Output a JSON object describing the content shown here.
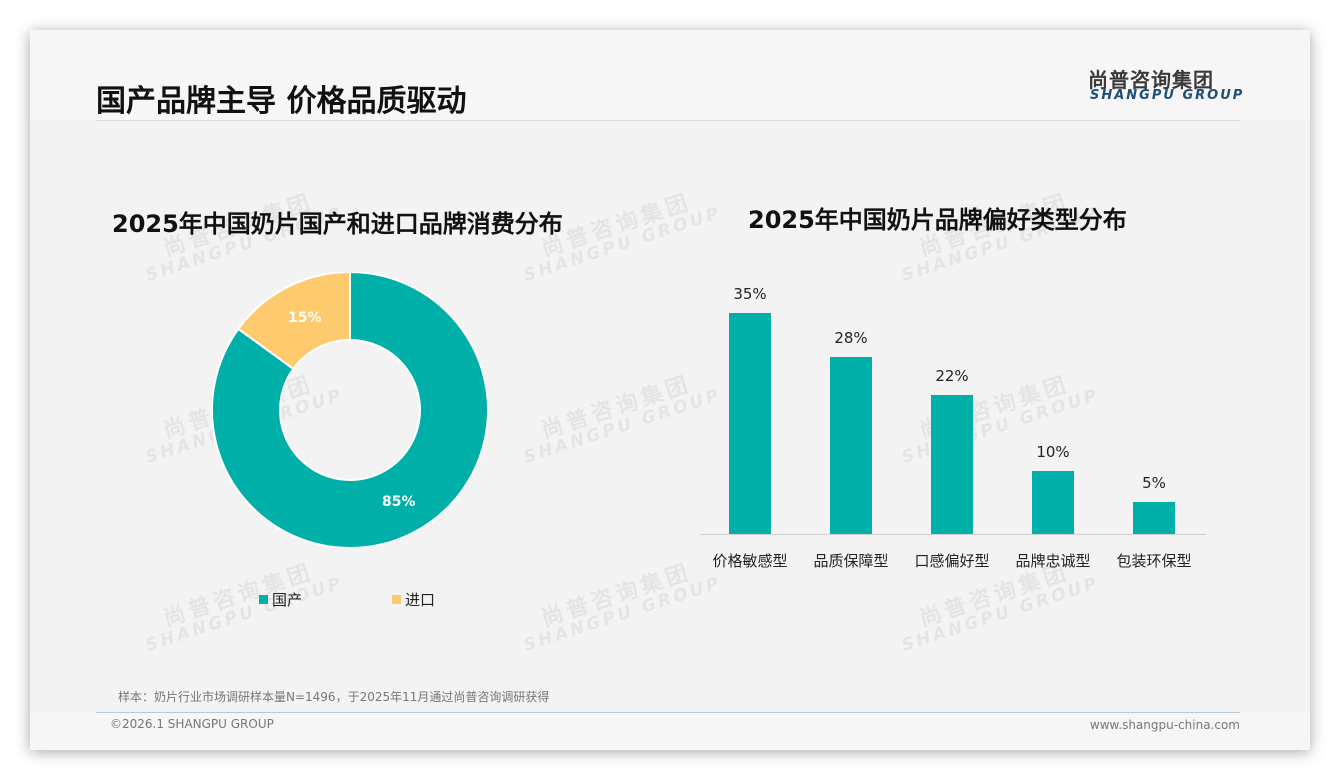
{
  "header": {
    "title": "国产品牌主导 价格品质驱动",
    "logo_cn": "尚普咨询集团",
    "logo_en": "SHANGPU GROUP"
  },
  "watermark": {
    "cn": "尚普咨询集团",
    "en": "SHANGPU GROUP"
  },
  "colors": {
    "teal": "#00afa8",
    "yellow": "#fdcb6e",
    "title": "#111111",
    "logo_en": "#1f4e79"
  },
  "chart_data": [
    {
      "type": "pie",
      "title": "2025年中国奶片国产和进口品牌消费分布",
      "categories": [
        "国产",
        "进口"
      ],
      "values": [
        85,
        15
      ],
      "labels": [
        "85%",
        "15%"
      ],
      "colors": [
        "#00afa8",
        "#fdcb6e"
      ],
      "donut": true,
      "legend_position": "bottom"
    },
    {
      "type": "bar",
      "title": "2025年中国奶片品牌偏好类型分布",
      "categories": [
        "价格敏感型",
        "品质保障型",
        "口感偏好型",
        "品牌忠诚型",
        "包装环保型"
      ],
      "values": [
        35,
        28,
        22,
        10,
        5
      ],
      "labels": [
        "35%",
        "28%",
        "22%",
        "10%",
        "5%"
      ],
      "color": "#00afa8",
      "xlabel": "",
      "ylabel": "",
      "grid": false
    }
  ],
  "footer": {
    "note": "样本：奶片行业市场调研样本量N=1496，于2025年11月通过尚普咨询调研获得",
    "copyright": "©2026.1 SHANGPU GROUP",
    "website": "www.shangpu-china.com"
  }
}
